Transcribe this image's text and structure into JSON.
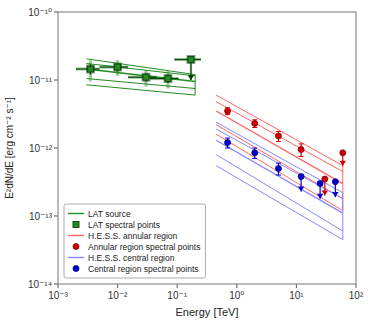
{
  "chart_data": {
    "type": "scatter",
    "log": true,
    "grid": false,
    "legend": "lower left",
    "xlabel": "Energy [TeV]",
    "ylabel": "E²dN/dE [erg cm⁻² s⁻¹]",
    "xlim": [
      0.001,
      100.0
    ],
    "ylim": [
      1e-14,
      1e-10
    ],
    "xticks": [
      {
        "value": 0.001,
        "label": "10⁻³"
      },
      {
        "value": 0.01,
        "label": "10⁻²"
      },
      {
        "value": 0.1,
        "label": "10⁻¹"
      },
      {
        "value": 1,
        "label": "10⁰"
      },
      {
        "value": 10,
        "label": "10¹"
      },
      {
        "value": 100,
        "label": "10²"
      }
    ],
    "yticks": [
      {
        "value": 1e-14,
        "label": "10⁻¹⁴"
      },
      {
        "value": 1e-13,
        "label": "10⁻¹³"
      },
      {
        "value": 1e-12,
        "label": "10⁻¹²"
      },
      {
        "value": 1e-11,
        "label": "10⁻¹¹"
      },
      {
        "value": 1e-10,
        "label": "10⁻¹⁰"
      }
    ],
    "series": [
      {
        "name": "LAT source",
        "type": "bowtie",
        "color": "#228B22",
        "x": [
          0.003,
          0.2
        ],
        "lo": [
          1.05e-11,
          7.5e-12
        ],
        "hi": [
          1.75e-11,
          1.15e-11
        ],
        "lo2": [
          8.5e-12,
          6e-12
        ],
        "hi2": [
          2.05e-11,
          1.2e-11
        ],
        "mid": [
          1.45e-11,
          9.5e-12
        ]
      },
      {
        "type": "errorbar",
        "marker": "square",
        "color": "#228B22",
        "x": [
          0.0035,
          0.01,
          0.03,
          0.07
        ],
        "y": [
          1.45e-11,
          1.55e-11,
          1.1e-11,
          1.05e-11
        ],
        "xerr_lo": [
          0.0015,
          0.005,
          0.015,
          0.035
        ],
        "xerr_hi": [
          0.0015,
          0.005,
          0.015,
          0.035
        ],
        "yerr_lo": [
          5e-12,
          4e-12,
          3e-12,
          3e-12
        ],
        "yerr_hi": [
          5e-12,
          4e-12,
          3e-12,
          3e-12
        ],
        "upper_limits": {
          "x": [
            0.17
          ],
          "y": [
            2e-11
          ],
          "xerr_lo": [
            0.08
          ],
          "xerr_hi": [
            0.08
          ],
          "yerr": [
            1e-11
          ]
        }
      },
      {
        "name": "LAT spectral points",
        "type": "errorbar",
        "marker": "square",
        "color": "#228B22",
        "x": [
          0.0035,
          0.01,
          0.03,
          0.07
        ],
        "y": [
          1.45e-11,
          1.55e-11,
          1.1e-11,
          1.05e-11
        ],
        "xerr_lo": [
          0.0015,
          0.005,
          0.015,
          0.035
        ],
        "xerr_hi": [
          0.0015,
          0.005,
          0.015,
          0.035
        ],
        "yerr_lo": [
          2.5e-12,
          2e-12,
          1.5e-12,
          1.5e-12
        ],
        "yerr_hi": [
          2.5e-12,
          2e-12,
          1.5e-12,
          1.5e-12
        ],
        "upper_limits": {
          "x": [
            0.17
          ],
          "y": [
            2e-11
          ],
          "xerr_lo": [
            0.08
          ],
          "xerr_hi": [
            0.08
          ],
          "yerr": [
            1e-11
          ]
        }
      },
      {
        "name": "H.E.S.S. annular region",
        "type": "bowtie",
        "color": "#FF6666",
        "x": [
          0.45,
          60.0
        ],
        "lo": [
          2.2e-12,
          1.8e-13
        ],
        "hi": [
          4.8e-12,
          4.5e-13
        ],
        "lo2": [
          1.6e-12,
          1.2e-13
        ],
        "hi2": [
          6e-12,
          5.5e-13
        ],
        "mid": [
          3.5e-12,
          3e-13
        ]
      },
      {
        "name": "Annular region spectral points",
        "type": "errorbar",
        "marker": "circle",
        "color": "#CC0000",
        "x": [
          0.7,
          2.0,
          5.0,
          12.0
        ],
        "y": [
          3.5e-12,
          2.3e-12,
          1.5e-12,
          9.5e-13
        ],
        "yerr_lo": [
          4e-13,
          3e-13,
          2.5e-13,
          2e-13
        ],
        "yerr_hi": [
          4e-13,
          3e-13,
          2.5e-13,
          2e-13
        ],
        "upper_limits": {
          "x": [
            30.0,
            60.0
          ],
          "y": [
            3.5e-13,
            8.5e-13
          ],
          "yerr": [
            1.5e-13,
            3e-13
          ]
        }
      },
      {
        "name": "H.E.S.S. central region",
        "type": "bowtie",
        "color": "#8888FF",
        "x": [
          0.45,
          60.0
        ],
        "lo": [
          8e-13,
          6e-14
        ],
        "hi": [
          1.9e-12,
          1.8e-13
        ],
        "lo2": [
          5.5e-13,
          4.5e-14
        ],
        "hi2": [
          2.4e-12,
          2.2e-13
        ],
        "mid": [
          1.3e-12,
          1.1e-13
        ]
      },
      {
        "name": "Central region spectral points",
        "type": "errorbar",
        "marker": "circle",
        "color": "#0000CC",
        "x": [
          0.7,
          2.0,
          5.0
        ],
        "y": [
          1.2e-12,
          8.5e-13,
          5e-13
        ],
        "yerr_lo": [
          2e-13,
          1.5e-13,
          1e-13
        ],
        "yerr_hi": [
          2e-13,
          1.5e-13,
          1e-13
        ],
        "upper_limits": {
          "x": [
            12.0,
            25.0,
            45.0
          ],
          "y": [
            3.8e-13,
            3e-13,
            3.2e-13
          ],
          "yerr": [
            1.5e-13,
            1.2e-13,
            1.3e-13
          ]
        }
      }
    ]
  }
}
